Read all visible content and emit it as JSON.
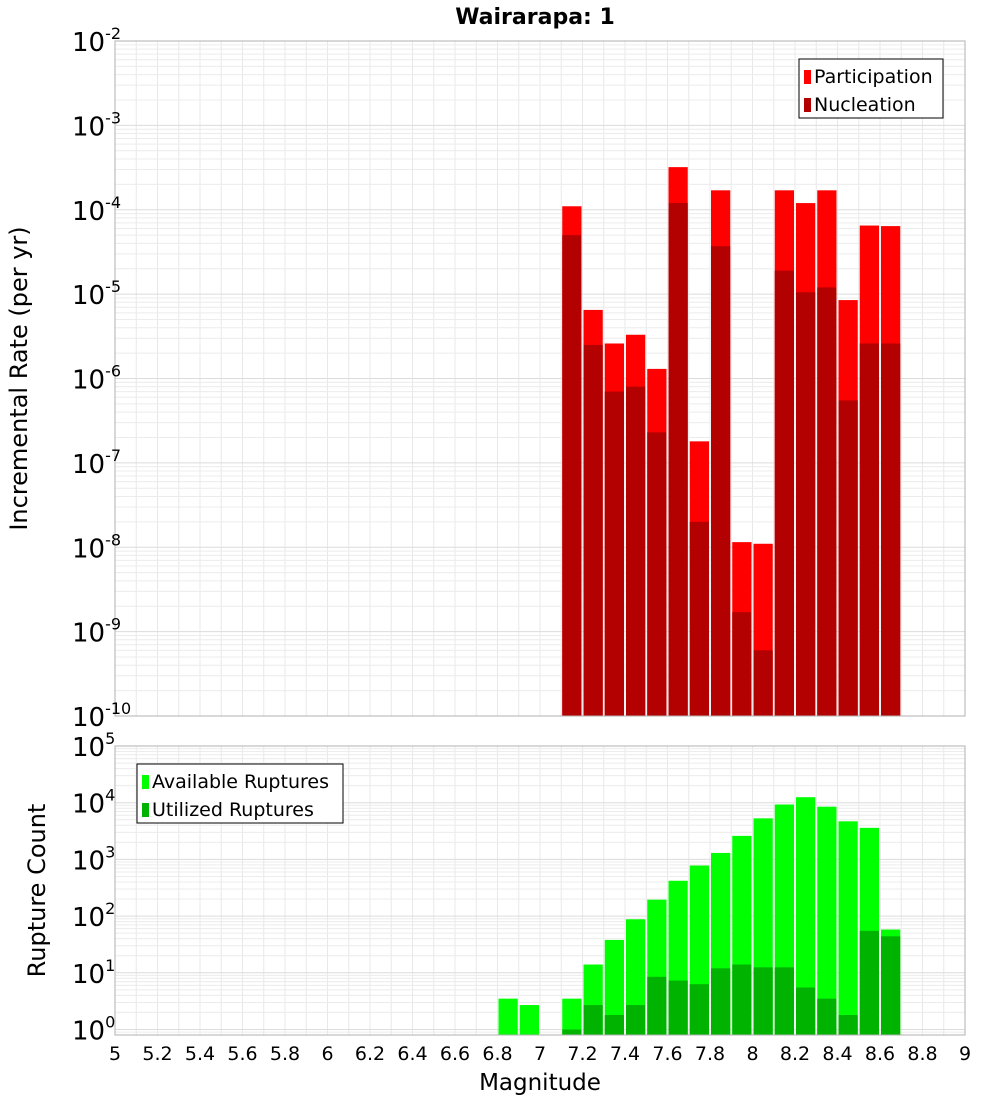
{
  "chart_data": [
    {
      "type": "bar",
      "title": "Wairarapa: 1",
      "xlabel": "",
      "ylabel": "Incremental Rate (per yr)",
      "y_scale": "log",
      "ylim": [
        1e-10,
        0.01
      ],
      "y_tick_exponents": [
        -10,
        -9,
        -8,
        -7,
        -6,
        -5,
        -4,
        -3,
        -2
      ],
      "xlim": [
        5,
        9
      ],
      "bin_width": 0.1,
      "grid": true,
      "legend": "top-right",
      "x": [
        7.15,
        7.25,
        7.35,
        7.45,
        7.55,
        7.65,
        7.75,
        7.85,
        7.95,
        8.05,
        8.15,
        8.25,
        8.35,
        8.45,
        8.55,
        8.65
      ],
      "series": [
        {
          "name": "Participation",
          "color": "#ff0000",
          "values": [
            0.00011,
            6.5e-06,
            2.6e-06,
            3.3e-06,
            1.3e-06,
            0.00032,
            1.8e-07,
            0.00017,
            1.15e-08,
            1.1e-08,
            0.00017,
            0.00012,
            0.00017,
            8.5e-06,
            6.5e-05,
            6.4e-05
          ]
        },
        {
          "name": "Nucleation",
          "color": "#b30000",
          "values": [
            5e-05,
            2.5e-06,
            7e-07,
            8e-07,
            2.3e-07,
            0.00012,
            2e-08,
            3.7e-05,
            1.7e-09,
            6e-10,
            1.9e-05,
            1.05e-05,
            1.2e-05,
            5.5e-07,
            2.6e-06,
            2.6e-06
          ]
        }
      ]
    },
    {
      "type": "bar",
      "title": "",
      "xlabel": "Magnitude",
      "ylabel": "Rupture Count",
      "y_scale": "log",
      "ylim": [
        0.8,
        100000
      ],
      "y_tick_exponents": [
        0,
        1,
        2,
        3,
        4,
        5
      ],
      "xlim": [
        5,
        9
      ],
      "x_ticks": [
        "5",
        "5.2",
        "5.4",
        "5.6",
        "5.8",
        "6",
        "6.2",
        "6.4",
        "6.6",
        "6.8",
        "7",
        "7.2",
        "7.4",
        "7.6",
        "7.8",
        "8",
        "8.2",
        "8.4",
        "8.6",
        "8.8",
        "9"
      ],
      "bin_width": 0.1,
      "grid": true,
      "legend": "top-left",
      "x": [
        6.85,
        6.95,
        7.15,
        7.25,
        7.35,
        7.45,
        7.55,
        7.65,
        7.75,
        7.85,
        7.95,
        8.05,
        8.15,
        8.25,
        8.35,
        8.45,
        8.55,
        8.65
      ],
      "series": [
        {
          "name": "Available Ruptures",
          "color": "#00ff00",
          "values": [
            3.5,
            2.7,
            3.5,
            14,
            38,
            88,
            195,
            420,
            780,
            1300,
            2600,
            5300,
            9300,
            12500,
            8500,
            4700,
            3600,
            58
          ]
        },
        {
          "name": "Utilized Ruptures",
          "color": "#00b300",
          "values": [
            0,
            0,
            1,
            2.7,
            1.8,
            2.7,
            8.5,
            7.3,
            6.3,
            12,
            14,
            12.5,
            12.5,
            5.5,
            3.5,
            1.8,
            55,
            44
          ]
        }
      ]
    }
  ]
}
